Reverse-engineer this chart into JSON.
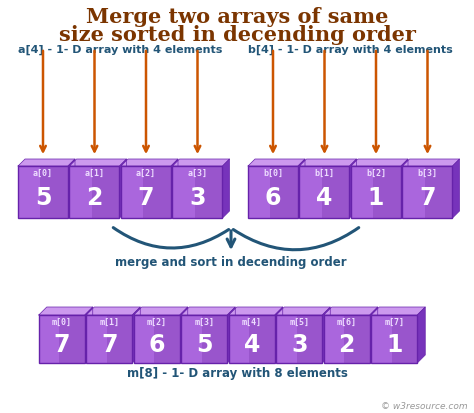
{
  "title_line1": "Merge two arrays of same",
  "title_line2": "size sorted in decending order",
  "title_color": "#7b3500",
  "title_fontsize": 15,
  "bg_color": "#ffffff",
  "array_a": [
    5,
    2,
    7,
    3
  ],
  "array_b": [
    6,
    4,
    1,
    7
  ],
  "array_m": [
    7,
    7,
    6,
    5,
    4,
    3,
    2,
    1
  ],
  "label_a": "a[4] - 1- D array with 4 elements",
  "label_b": "b[4] - 1- D array with 4 elements",
  "label_m": "m[8] - 1- D array with 8 elements",
  "merge_label": "merge and sort in decending order",
  "index_labels_a": [
    "a[0]",
    "a[1]",
    "a[2]",
    "a[3]"
  ],
  "index_labels_b": [
    "b[0]",
    "b[1]",
    "b[2]",
    "b[3]"
  ],
  "index_labels_m": [
    "m[0]",
    "m[1]",
    "m[2]",
    "m[3]",
    "m[4]",
    "m[5]",
    "m[6]",
    "m[7]"
  ],
  "box_face_color": "#9955cc",
  "box_face_color2": "#aa66dd",
  "box_edge_color": "#6622aa",
  "box_top_color": "#cc99ee",
  "box_side_color": "#7733bb",
  "text_color": "#ffffff",
  "index_text_color": "#eeddff",
  "arrow_color": "#cc5500",
  "merge_arrow_color": "#225577",
  "label_text_color": "#225577",
  "watermark": "© w3resource.com"
}
